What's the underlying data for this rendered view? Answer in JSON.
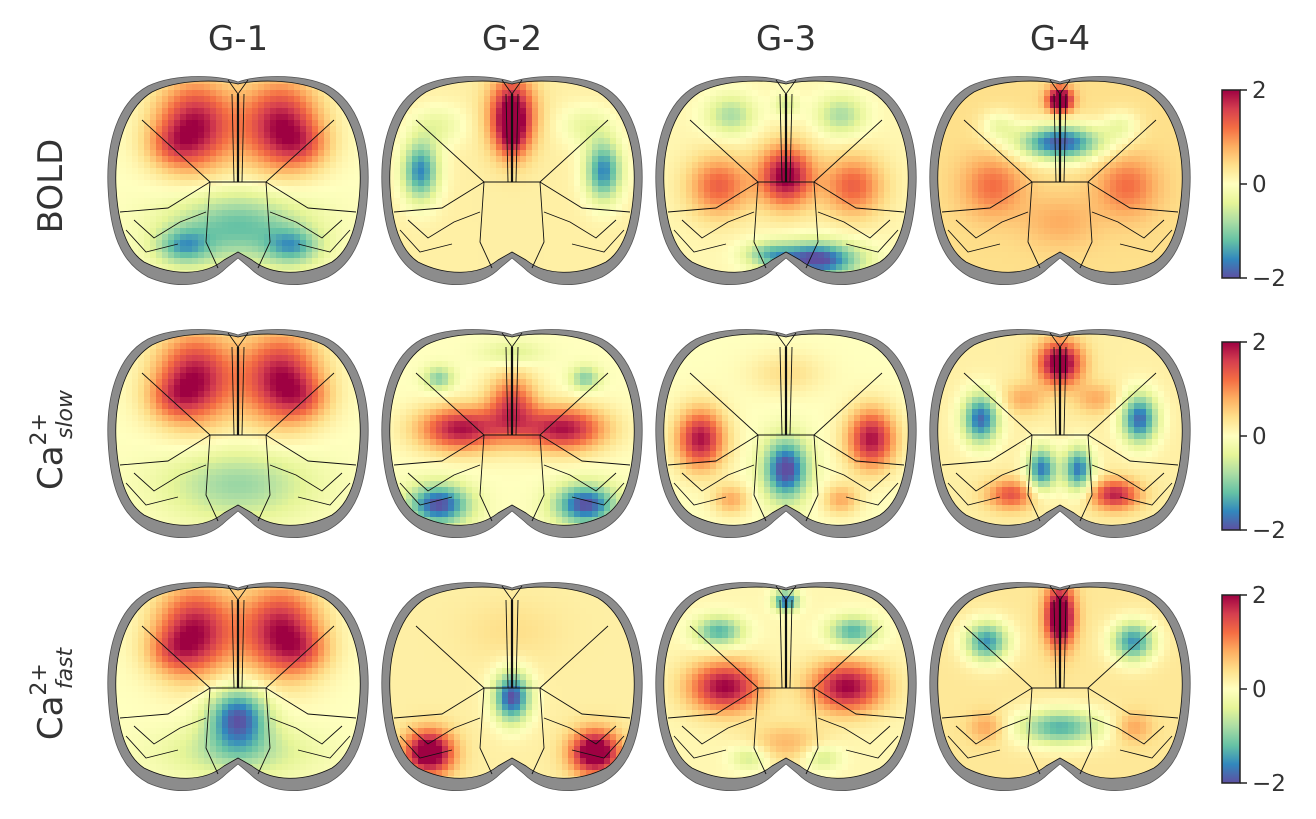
{
  "chart_data": {
    "type": "heatmap",
    "description_kind": "brain-surface gradient maps",
    "columns": [
      "G-1",
      "G-2",
      "G-3",
      "G-4"
    ],
    "rows": [
      {
        "base": "BOLD",
        "sup": "",
        "sub": ""
      },
      {
        "base": "Ca",
        "sup": "2+",
        "sub": "slow"
      },
      {
        "base": "Ca",
        "sup": "2+",
        "sub": "fast"
      }
    ],
    "colormap": {
      "name": "Spectral_r",
      "stops": [
        "#5e4fa2",
        "#3288bd",
        "#66c2a5",
        "#abdda4",
        "#e6f598",
        "#ffffbf",
        "#fee08b",
        "#fdae61",
        "#f46d43",
        "#d53e4f",
        "#9e0142"
      ],
      "range": [
        -2,
        2
      ],
      "ticks": [
        "2",
        "0",
        "−2"
      ]
    },
    "maps": [
      [
        {
          "base": 0.0,
          "blobs": [
            [
              -0.35,
              -0.55,
              0.32,
              0.45,
              1.9
            ],
            [
              0.35,
              -0.55,
              0.32,
              0.45,
              1.9
            ],
            [
              -0.55,
              -0.35,
              0.22,
              0.22,
              0.6
            ],
            [
              0.55,
              -0.35,
              0.22,
              0.22,
              0.6
            ],
            [
              0.0,
              0.45,
              0.55,
              0.35,
              -1.2
            ],
            [
              -0.45,
              0.65,
              0.22,
              0.18,
              -1.1
            ],
            [
              0.45,
              0.65,
              0.22,
              0.18,
              -1.1
            ]
          ]
        },
        {
          "base": 0.2,
          "blobs": [
            [
              0.0,
              -0.65,
              0.18,
              0.35,
              2.2
            ],
            [
              0.0,
              -0.4,
              0.12,
              0.2,
              0.6
            ],
            [
              -0.75,
              -0.1,
              0.15,
              0.3,
              -1.8
            ],
            [
              0.75,
              -0.1,
              0.15,
              0.3,
              -1.8
            ],
            [
              -0.6,
              -0.55,
              0.22,
              0.2,
              -0.5
            ],
            [
              0.6,
              -0.55,
              0.22,
              0.2,
              -0.5
            ]
          ]
        },
        {
          "base": 0.1,
          "blobs": [
            [
              0.0,
              -0.05,
              0.22,
              0.3,
              2.0
            ],
            [
              -0.55,
              0.05,
              0.25,
              0.3,
              1.2
            ],
            [
              0.55,
              0.05,
              0.25,
              0.3,
              1.2
            ],
            [
              0.25,
              0.78,
              0.35,
              0.18,
              -2.2
            ],
            [
              -0.15,
              0.72,
              0.2,
              0.12,
              -0.9
            ],
            [
              -0.45,
              -0.65,
              0.2,
              0.2,
              -0.9
            ],
            [
              0.45,
              -0.65,
              0.2,
              0.2,
              -0.9
            ],
            [
              0.0,
              -0.75,
              0.1,
              0.12,
              -0.6
            ]
          ]
        },
        {
          "base": 0.4,
          "blobs": [
            [
              0.0,
              -0.8,
              0.1,
              0.12,
              2.4
            ],
            [
              0.0,
              -0.38,
              0.35,
              0.18,
              -2.3
            ],
            [
              -0.55,
              0.05,
              0.25,
              0.3,
              0.8
            ],
            [
              0.55,
              0.05,
              0.25,
              0.3,
              0.8
            ],
            [
              0.0,
              0.4,
              0.3,
              0.25,
              0.4
            ],
            [
              -0.5,
              -0.55,
              0.15,
              0.15,
              -0.6
            ],
            [
              0.5,
              -0.55,
              0.15,
              0.15,
              -0.6
            ]
          ]
        }
      ],
      [
        {
          "base": 0.0,
          "blobs": [
            [
              -0.35,
              -0.55,
              0.32,
              0.45,
              1.9
            ],
            [
              0.35,
              -0.55,
              0.32,
              0.45,
              1.9
            ],
            [
              -0.55,
              -0.35,
              0.22,
              0.22,
              0.6
            ],
            [
              0.55,
              -0.35,
              0.22,
              0.22,
              0.6
            ],
            [
              0.0,
              0.5,
              0.6,
              0.35,
              -0.9
            ]
          ]
        },
        {
          "base": 0.0,
          "blobs": [
            [
              -0.42,
              -0.05,
              0.35,
              0.22,
              1.9
            ],
            [
              0.42,
              -0.05,
              0.35,
              0.22,
              1.9
            ],
            [
              0.0,
              -0.3,
              0.2,
              0.3,
              1.4
            ],
            [
              -0.6,
              0.7,
              0.25,
              0.2,
              -2.0
            ],
            [
              0.6,
              0.7,
              0.25,
              0.2,
              -2.0
            ],
            [
              0.0,
              -0.8,
              0.25,
              0.12,
              -0.5
            ],
            [
              -0.6,
              -0.55,
              0.12,
              0.12,
              -1.0
            ],
            [
              0.6,
              -0.55,
              0.12,
              0.12,
              -1.0
            ]
          ]
        },
        {
          "base": 0.0,
          "blobs": [
            [
              -0.7,
              0.05,
              0.2,
              0.3,
              1.9
            ],
            [
              0.7,
              0.05,
              0.2,
              0.3,
              1.9
            ],
            [
              0.0,
              0.35,
              0.18,
              0.3,
              -2.1
            ],
            [
              0.0,
              -0.6,
              0.3,
              0.2,
              0.4
            ],
            [
              -0.45,
              0.65,
              0.15,
              0.15,
              0.8
            ],
            [
              0.45,
              0.65,
              0.15,
              0.15,
              0.8
            ]
          ]
        },
        {
          "base": 0.2,
          "blobs": [
            [
              0.0,
              -0.7,
              0.18,
              0.22,
              2.1
            ],
            [
              -0.65,
              -0.15,
              0.15,
              0.25,
              -2.0
            ],
            [
              0.65,
              -0.15,
              0.15,
              0.25,
              -2.0
            ],
            [
              -0.15,
              0.35,
              0.12,
              0.22,
              -1.9
            ],
            [
              0.15,
              0.35,
              0.12,
              0.22,
              -1.9
            ],
            [
              -0.4,
              0.6,
              0.2,
              0.15,
              1.2
            ],
            [
              0.45,
              0.6,
              0.2,
              0.15,
              1.6
            ],
            [
              -0.3,
              -0.35,
              0.18,
              0.15,
              0.6
            ],
            [
              0.3,
              -0.35,
              0.18,
              0.15,
              0.6
            ]
          ]
        }
      ],
      [
        {
          "base": 0.0,
          "blobs": [
            [
              -0.35,
              -0.55,
              0.32,
              0.45,
              1.9
            ],
            [
              0.35,
              -0.55,
              0.32,
              0.45,
              1.9
            ],
            [
              -0.55,
              -0.35,
              0.22,
              0.22,
              0.6
            ],
            [
              0.55,
              -0.35,
              0.22,
              0.22,
              0.6
            ],
            [
              0.0,
              0.3,
              0.25,
              0.3,
              -1.9
            ],
            [
              0.0,
              0.65,
              0.6,
              0.25,
              -0.7
            ]
          ]
        },
        {
          "base": 0.2,
          "blobs": [
            [
              0.0,
              0.1,
              0.15,
              0.25,
              -2.2
            ],
            [
              -0.68,
              0.65,
              0.2,
              0.22,
              2.3
            ],
            [
              0.68,
              0.65,
              0.2,
              0.22,
              2.3
            ],
            [
              0.0,
              -0.55,
              0.4,
              0.3,
              0.2
            ]
          ]
        },
        {
          "base": 0.1,
          "blobs": [
            [
              -0.5,
              0.0,
              0.3,
              0.25,
              1.9
            ],
            [
              0.5,
              0.0,
              0.3,
              0.25,
              1.9
            ],
            [
              0.0,
              -0.85,
              0.1,
              0.1,
              -1.9
            ],
            [
              -0.55,
              -0.55,
              0.2,
              0.15,
              -1.4
            ],
            [
              0.55,
              -0.55,
              0.2,
              0.15,
              -1.4
            ],
            [
              0.0,
              0.55,
              0.3,
              0.2,
              0.6
            ],
            [
              -0.3,
              0.7,
              0.15,
              0.12,
              -0.7
            ],
            [
              0.3,
              0.7,
              0.15,
              0.12,
              -0.7
            ]
          ]
        },
        {
          "base": 0.3,
          "blobs": [
            [
              0.0,
              -0.7,
              0.12,
              0.3,
              2.4
            ],
            [
              -0.6,
              -0.45,
              0.18,
              0.2,
              -1.8
            ],
            [
              0.6,
              -0.45,
              0.18,
              0.2,
              -1.8
            ],
            [
              0.0,
              0.4,
              0.35,
              0.18,
              -1.6
            ],
            [
              -0.6,
              0.4,
              0.15,
              0.15,
              0.6
            ],
            [
              0.6,
              0.4,
              0.15,
              0.15,
              0.6
            ]
          ]
        }
      ]
    ]
  }
}
